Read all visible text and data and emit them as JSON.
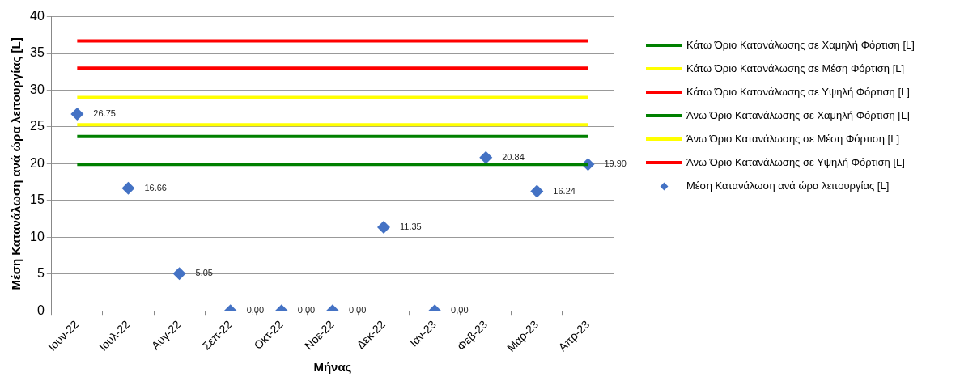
{
  "chart_data": {
    "type": "scatter",
    "xlabel": "Μήνας",
    "ylabel": "Μέση Κατανάλωση ανά ώρα λειτουργίας [L]",
    "categories": [
      "Ιουν-22",
      "Ιουλ-22",
      "Αυγ-22",
      "Σεπ-22",
      "Οκτ-22",
      "Νοε-22",
      "Δεκ-22",
      "Ιαν-23",
      "Φεβ-23",
      "Μαρ-23",
      "Απρ-23"
    ],
    "series": [
      {
        "name": "Κάτω Όριο Κατανάλωσης σε Χαμηλή Φόρτιση [L]",
        "type": "line",
        "marker": "none",
        "color": "#008000",
        "values": [
          19.9,
          19.9,
          19.9,
          19.9,
          19.9,
          19.9,
          19.9,
          19.9,
          19.9,
          19.9,
          19.9
        ]
      },
      {
        "name": "Κάτω Όριο Κατανάλωσης σε Μέση Φόρτιση [L]",
        "type": "line",
        "marker": "none",
        "color": "#ffff00",
        "values": [
          25.3,
          25.3,
          25.3,
          25.3,
          25.3,
          25.3,
          25.3,
          25.3,
          25.3,
          25.3,
          25.3
        ]
      },
      {
        "name": "Κάτω Όριο Κατανάλωσης σε Υψηλή Φόρτιση [L]",
        "type": "line",
        "marker": "none",
        "color": "#ff0000",
        "values": [
          33.0,
          33.0,
          33.0,
          33.0,
          33.0,
          33.0,
          33.0,
          33.0,
          33.0,
          33.0,
          33.0
        ]
      },
      {
        "name": "Άνω Όριο Κατανάλωσης σε Χαμηλή Φόρτιση [L]",
        "type": "line",
        "marker": "none",
        "color": "#008000",
        "values": [
          23.7,
          23.7,
          23.7,
          23.7,
          23.7,
          23.7,
          23.7,
          23.7,
          23.7,
          23.7,
          23.7
        ]
      },
      {
        "name": "Άνω Όριο Κατανάλωσης σε Μέση Φόρτιση [L]",
        "type": "line",
        "marker": "none",
        "color": "#ffff00",
        "values": [
          29.0,
          29.0,
          29.0,
          29.0,
          29.0,
          29.0,
          29.0,
          29.0,
          29.0,
          29.0,
          29.0
        ]
      },
      {
        "name": "Άνω Όριο Κατανάλωσης σε Υψηλή Φόρτιση [L]",
        "type": "line",
        "marker": "none",
        "color": "#ff0000",
        "values": [
          36.7,
          36.7,
          36.7,
          36.7,
          36.7,
          36.7,
          36.7,
          36.7,
          36.7,
          36.7,
          36.7
        ]
      },
      {
        "name": "Μέση Κατανάλωση ανά ώρα λειτουργίας [L]",
        "type": "scatter",
        "marker": "diamond",
        "color": "#4472c4",
        "values": [
          26.75,
          16.66,
          5.05,
          0,
          0,
          0,
          11.35,
          0,
          20.84,
          16.24,
          19.9
        ],
        "value_labels": [
          "26.75",
          "16.66",
          "5.05",
          "0,00",
          "0,00",
          "0,00",
          "11.35",
          "0,00",
          "20.84",
          "16.24",
          "19.90"
        ]
      }
    ],
    "ylim": [
      0,
      40
    ],
    "yticks": [
      0,
      5,
      10,
      15,
      20,
      25,
      30,
      35,
      40
    ],
    "grid": "y",
    "legend": "right"
  }
}
